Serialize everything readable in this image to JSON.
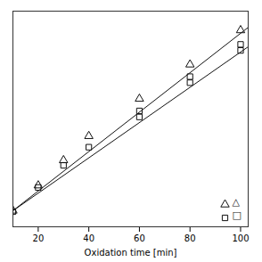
{
  "chart_data": {
    "type": "scatter",
    "xlabel": "Oxidation time [min]",
    "xlim": [
      10,
      103
    ],
    "ylim": [
      -0.05,
      1.02
    ],
    "xticks": [
      20,
      40,
      60,
      80,
      100
    ],
    "yticks": [],
    "tick_labels": "x",
    "legend": "lower right",
    "series": [
      {
        "name": "△",
        "marker": "triangle",
        "color": "#111111",
        "x": [
          10,
          20,
          30,
          40,
          60,
          80,
          100
        ],
        "values": [
          0.03,
          0.155,
          0.28,
          0.4,
          0.585,
          0.755,
          0.925
        ],
        "fit": {
          "x": [
            10,
            103
          ],
          "y": [
            0.0298,
            0.93934
          ]
        }
      },
      {
        "name": "□",
        "marker": "square",
        "color": "#111111",
        "x": [
          10,
          20,
          30,
          40,
          60,
          60,
          80,
          80,
          100,
          100
        ],
        "values": [
          0.025,
          0.145,
          0.255,
          0.345,
          0.495,
          0.525,
          0.665,
          0.695,
          0.825,
          0.855
        ],
        "fit": {
          "x": [
            10,
            103
          ],
          "y": [
            0.0295,
            0.84325
          ]
        }
      }
    ]
  }
}
